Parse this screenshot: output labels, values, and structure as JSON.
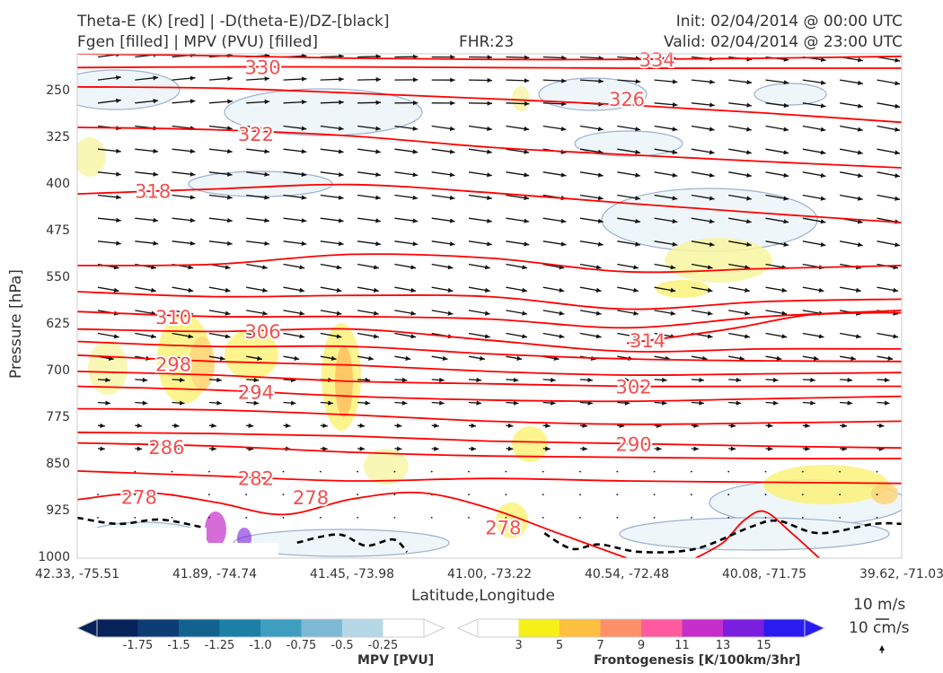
{
  "header": {
    "title_line1": "Theta-E (K) [red] | -D(theta-E)/DZ-[black]",
    "title_line2": "Fgen [filled] | MPV (PVU) [filled]",
    "fhr": "FHR:23",
    "init": "Init: 02/04/2014 @ 00:00 UTC",
    "valid": "Valid: 02/04/2014 @ 23:00 UTC"
  },
  "chart_data": {
    "type": "cross-section",
    "xlabel": "Latitude,Longitude",
    "ylabel": "Pressure [hPa]",
    "x_ticks": [
      "42.33, -75.51",
      "41.89, -74.74",
      "41.45, -73.98",
      "41.00, -73.22",
      "40.54, -72.48",
      "40.08, -71.75",
      "39.62, -71.03"
    ],
    "y_ticks": [
      250,
      325,
      400,
      475,
      550,
      625,
      700,
      775,
      850,
      925,
      1000
    ],
    "ylim": [
      1000,
      190
    ],
    "x_range": [
      0,
      6
    ],
    "theta_e_contours": [
      {
        "label": "334",
        "pts": [
          [
            0,
            190
          ],
          [
            1,
            193
          ],
          [
            2,
            197
          ],
          [
            3,
            199
          ],
          [
            4,
            199
          ],
          [
            5,
            197
          ],
          [
            6,
            194
          ]
        ]
      },
      {
        "label": "330",
        "pts": [
          [
            0,
            212
          ],
          [
            1,
            211
          ],
          [
            2,
            211
          ],
          [
            3,
            212
          ],
          [
            4,
            213
          ],
          [
            5,
            213
          ],
          [
            6,
            213
          ]
        ]
      },
      {
        "label": "326",
        "pts": [
          [
            0,
            243
          ],
          [
            1,
            245
          ],
          [
            2,
            253
          ],
          [
            3,
            262
          ],
          [
            4,
            272
          ],
          [
            5,
            285
          ],
          [
            6,
            300
          ]
        ]
      },
      {
        "label": "322",
        "pts": [
          [
            0,
            308
          ],
          [
            1,
            312
          ],
          [
            2,
            322
          ],
          [
            3,
            340
          ],
          [
            4,
            352
          ],
          [
            5,
            363
          ],
          [
            6,
            373
          ]
        ]
      },
      {
        "label": "318",
        "pts": [
          [
            0,
            415
          ],
          [
            1,
            407
          ],
          [
            2,
            400
          ],
          [
            3,
            413
          ],
          [
            4,
            430
          ],
          [
            5,
            446
          ],
          [
            6,
            461
          ]
        ]
      },
      {
        "label": "",
        "pts": [
          [
            0,
            530
          ],
          [
            1,
            528
          ],
          [
            2,
            512
          ],
          [
            3,
            518
          ],
          [
            4,
            540
          ],
          [
            5,
            535
          ],
          [
            6,
            530
          ]
        ]
      },
      {
        "label": "",
        "pts": [
          [
            0,
            572
          ],
          [
            1,
            580
          ],
          [
            2,
            578
          ],
          [
            3,
            580
          ],
          [
            4,
            600
          ],
          [
            5,
            588
          ],
          [
            6,
            584
          ]
        ]
      },
      {
        "label": "310",
        "pts": [
          [
            0,
            604
          ],
          [
            1,
            612
          ],
          [
            2,
            612
          ],
          [
            3,
            616
          ],
          [
            4,
            630
          ],
          [
            5,
            612
          ],
          [
            6,
            602
          ]
        ]
      },
      {
        "label": "314",
        "pts": [
          [
            4,
            655
          ],
          [
            4.4,
            643
          ],
          [
            4.8,
            630
          ],
          [
            5.3,
            610
          ],
          [
            5.8,
            606
          ],
          [
            6,
            606
          ]
        ]
      },
      {
        "label": "306",
        "pts": [
          [
            0,
            632
          ],
          [
            1,
            636
          ],
          [
            2,
            632
          ],
          [
            3,
            650
          ],
          [
            4,
            668
          ],
          [
            5,
            664
          ],
          [
            6,
            664
          ]
        ]
      },
      {
        "label": "",
        "pts": [
          [
            0,
            652
          ],
          [
            1,
            660
          ],
          [
            2,
            660
          ],
          [
            3,
            672
          ],
          [
            4,
            680
          ],
          [
            5,
            683
          ],
          [
            6,
            684
          ]
        ]
      },
      {
        "label": "298",
        "pts": [
          [
            0,
            674
          ],
          [
            1,
            684
          ],
          [
            2,
            690
          ],
          [
            3,
            700
          ],
          [
            4,
            706
          ],
          [
            5,
            704
          ],
          [
            6,
            702
          ]
        ]
      },
      {
        "label": "302",
        "pts": [
          [
            0,
            700
          ],
          [
            1,
            706
          ],
          [
            2,
            716
          ],
          [
            3,
            720
          ],
          [
            4,
            724
          ],
          [
            5,
            724
          ],
          [
            6,
            724
          ]
        ]
      },
      {
        "label": "294",
        "pts": [
          [
            0,
            724
          ],
          [
            1,
            730
          ],
          [
            2,
            740
          ],
          [
            3,
            746
          ],
          [
            4,
            748
          ],
          [
            5,
            744
          ],
          [
            6,
            740
          ]
        ]
      },
      {
        "label": "",
        "pts": [
          [
            0,
            760
          ],
          [
            1,
            762
          ],
          [
            2,
            770
          ],
          [
            3,
            780
          ],
          [
            4,
            785
          ],
          [
            5,
            783
          ],
          [
            6,
            780
          ]
        ]
      },
      {
        "label": "290",
        "pts": [
          [
            0,
            798
          ],
          [
            1,
            800
          ],
          [
            2,
            804
          ],
          [
            3,
            812
          ],
          [
            4,
            816
          ],
          [
            5,
            820
          ],
          [
            6,
            823
          ]
        ]
      },
      {
        "label": "286",
        "pts": [
          [
            0,
            815
          ],
          [
            1,
            820
          ],
          [
            2,
            830
          ],
          [
            3,
            836
          ],
          [
            4,
            838
          ],
          [
            5,
            840
          ],
          [
            6,
            840
          ]
        ]
      },
      {
        "label": "282",
        "pts": [
          [
            0,
            860
          ],
          [
            1,
            868
          ],
          [
            2,
            876
          ],
          [
            3,
            872
          ],
          [
            4,
            876
          ],
          [
            5,
            878
          ],
          [
            6,
            880
          ]
        ]
      },
      {
        "label": "278",
        "pts": [
          [
            0,
            906
          ],
          [
            0.5,
            895
          ],
          [
            1,
            910
          ],
          [
            1.5,
            930
          ],
          [
            2,
            905
          ],
          [
            2.5,
            895
          ],
          [
            3,
            920
          ],
          [
            3.5,
            960
          ],
          [
            4,
            1000
          ]
        ]
      },
      {
        "label": "",
        "pts": [
          [
            4.5,
            1000
          ],
          [
            4.7,
            975
          ],
          [
            4.85,
            940
          ],
          [
            5,
            925
          ],
          [
            5.2,
            960
          ],
          [
            5.4,
            1000
          ]
        ]
      }
    ],
    "stability_dashed": [
      {
        "label": "",
        "pts": [
          [
            0,
            935
          ],
          [
            0.3,
            945
          ],
          [
            0.6,
            938
          ],
          [
            0.9,
            950
          ]
        ]
      },
      {
        "label": "",
        "pts": [
          [
            1.6,
            975
          ],
          [
            1.9,
            962
          ],
          [
            2.1,
            980
          ],
          [
            2.3,
            970
          ],
          [
            2.4,
            990
          ]
        ]
      },
      {
        "label": "",
        "pts": [
          [
            3.4,
            960
          ],
          [
            3.6,
            985
          ],
          [
            3.8,
            978
          ],
          [
            4.1,
            990
          ],
          [
            4.5,
            985
          ],
          [
            4.9,
            950
          ],
          [
            5.1,
            940
          ],
          [
            5.4,
            960
          ],
          [
            5.8,
            945
          ],
          [
            6,
            945
          ]
        ]
      }
    ],
    "mpv_colorbar": {
      "title": "MPV [PVU]",
      "ticks": [
        "-1.75",
        "-1.5",
        "-1.25",
        "-1.0",
        "-0.75",
        "-0.5",
        "-0.25"
      ],
      "colors": [
        "#08225a",
        "#0c3d75",
        "#12628f",
        "#1c7fa6",
        "#3e9ec0",
        "#7db9d4",
        "#b6d8e6",
        "#ffffff"
      ]
    },
    "fgen_colorbar": {
      "title": "Frontogenesis [K/100km/3hr]",
      "ticks": [
        "3",
        "5",
        "7",
        "9",
        "11",
        "13",
        "15"
      ],
      "colors": [
        "#ffffff",
        "#f4f018",
        "#ffbf40",
        "#ff8f6a",
        "#ff5aa0",
        "#c52ec9",
        "#7a1ee0",
        "#2a1cf0"
      ]
    },
    "reference_vector": {
      "line1": "10 m/s",
      "line2": "10 cm/s"
    }
  },
  "colors": {
    "theta_e": "#ff0000",
    "vectors": "#111111",
    "mpv_edge": "#9fb0d0",
    "mpv_fill": "#eef6f9"
  }
}
